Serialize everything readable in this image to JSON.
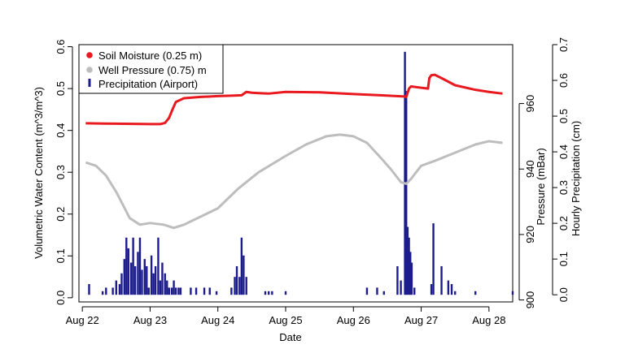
{
  "chart_data": {
    "type": "line",
    "xlabel": "Date",
    "ylabel_left": "Volumetric Water Content (m^3/m^3)",
    "ylabel_right_pressure": "Pressure (mBar)",
    "ylabel_right_precip": "Hourly Precipitation (cm)",
    "x_ticks": [
      "Aug 22",
      "Aug 23",
      "Aug 24",
      "Aug 25",
      "Aug 26",
      "Aug 27",
      "Aug 28"
    ],
    "x_tick_positions": [
      0,
      1,
      2,
      3,
      4,
      5,
      6
    ],
    "xlim": [
      -0.05,
      6.35
    ],
    "left_axis": {
      "ylim": [
        -0.01,
        0.605
      ],
      "ticks": [
        0.0,
        0.1,
        0.2,
        0.3,
        0.4,
        0.5,
        0.6
      ]
    },
    "pressure_axis": {
      "ylim": [
        899.4,
        978
      ],
      "ticks": [
        900,
        920,
        940,
        960
      ]
    },
    "precip_axis": {
      "ylim": [
        -0.02,
        0.7
      ],
      "ticks": [
        0.0,
        0.1,
        0.2,
        0.3,
        0.4,
        0.5,
        0.6,
        0.7
      ]
    },
    "legend": {
      "position": "top-left",
      "entries": [
        "Soil Moisture (0.25 m)",
        "Well Pressure (0.75) m",
        "Precipitation (Airport)"
      ]
    },
    "colors": {
      "soil": "#e8191f",
      "well": "#bdbdbd",
      "precip": "#1c1c8c"
    },
    "series": [
      {
        "name": "Soil Moisture (0.25 m)",
        "axis": "left",
        "x": [
          0.05,
          0.5,
          1.0,
          1.15,
          1.22,
          1.28,
          1.33,
          1.38,
          1.5,
          1.75,
          2.0,
          2.2,
          2.35,
          2.42,
          2.5,
          2.6,
          2.75,
          3.0,
          3.5,
          4.0,
          4.4,
          4.75,
          4.78,
          4.82,
          4.85,
          5.0,
          5.1,
          5.12,
          5.15,
          5.2,
          5.3,
          5.5,
          5.8,
          6.0,
          6.2
        ],
        "y": [
          0.417,
          0.416,
          0.415,
          0.415,
          0.418,
          0.43,
          0.45,
          0.468,
          0.477,
          0.48,
          0.482,
          0.483,
          0.484,
          0.492,
          0.49,
          0.489,
          0.488,
          0.492,
          0.491,
          0.487,
          0.484,
          0.481,
          0.48,
          0.5,
          0.505,
          0.502,
          0.5,
          0.525,
          0.532,
          0.533,
          0.525,
          0.508,
          0.497,
          0.492,
          0.488
        ]
      },
      {
        "name": "Well Pressure (0.75) m",
        "axis": "pressure",
        "x": [
          0.05,
          0.2,
          0.35,
          0.5,
          0.6,
          0.7,
          0.85,
          1.0,
          1.2,
          1.35,
          1.5,
          1.8,
          2.0,
          2.3,
          2.6,
          3.0,
          3.3,
          3.6,
          3.8,
          4.0,
          4.2,
          4.4,
          4.55,
          4.7,
          4.78,
          4.85,
          5.0,
          5.2,
          5.5,
          5.8,
          6.0,
          6.2
        ],
        "y": [
          942.0,
          941.0,
          938.0,
          933.0,
          929.0,
          925.0,
          923.0,
          923.5,
          923.0,
          922.0,
          923.0,
          926.0,
          928.0,
          934.0,
          939.0,
          944.0,
          947.5,
          950.0,
          950.5,
          950.0,
          948.0,
          943.5,
          940.0,
          936.0,
          935.5,
          937.0,
          941.0,
          942.5,
          945.0,
          947.5,
          948.5,
          948.0
        ]
      },
      {
        "name": "Precipitation (Airport)",
        "type": "bar",
        "axis": "precip",
        "x": [
          0.1,
          0.3,
          0.35,
          0.45,
          0.5,
          0.55,
          0.58,
          0.62,
          0.65,
          0.68,
          0.72,
          0.75,
          0.78,
          0.82,
          0.85,
          0.88,
          0.92,
          0.95,
          0.98,
          1.02,
          1.05,
          1.08,
          1.12,
          1.15,
          1.18,
          1.22,
          1.25,
          1.28,
          1.32,
          1.35,
          1.38,
          1.42,
          1.45,
          1.6,
          1.68,
          1.8,
          1.88,
          1.98,
          2.2,
          2.25,
          2.28,
          2.32,
          2.35,
          2.38,
          2.42,
          2.7,
          2.75,
          2.8,
          3.0,
          4.2,
          4.35,
          4.45,
          4.65,
          4.7,
          4.76,
          4.78,
          4.8,
          4.82,
          4.84,
          4.86,
          4.9,
          5.15,
          5.18,
          5.3,
          5.4,
          5.45,
          5.5,
          5.8,
          6.35
        ],
        "y": [
          0.03,
          0.01,
          0.02,
          0.02,
          0.04,
          0.03,
          0.06,
          0.1,
          0.16,
          0.13,
          0.09,
          0.16,
          0.08,
          0.12,
          0.16,
          0.07,
          0.1,
          0.08,
          0.02,
          0.11,
          0.06,
          0.08,
          0.16,
          0.04,
          0.09,
          0.06,
          0.04,
          0.02,
          0.02,
          0.04,
          0.02,
          0.02,
          0.02,
          0.02,
          0.02,
          0.02,
          0.02,
          0.01,
          0.02,
          0.05,
          0.08,
          0.05,
          0.16,
          0.11,
          0.05,
          0.01,
          0.01,
          0.01,
          0.01,
          0.02,
          0.02,
          0.01,
          0.08,
          0.04,
          0.68,
          0.57,
          0.19,
          0.16,
          0.12,
          0.09,
          0.02,
          0.03,
          0.2,
          0.08,
          0.04,
          0.03,
          0.01,
          0.01,
          0.01
        ]
      }
    ]
  }
}
